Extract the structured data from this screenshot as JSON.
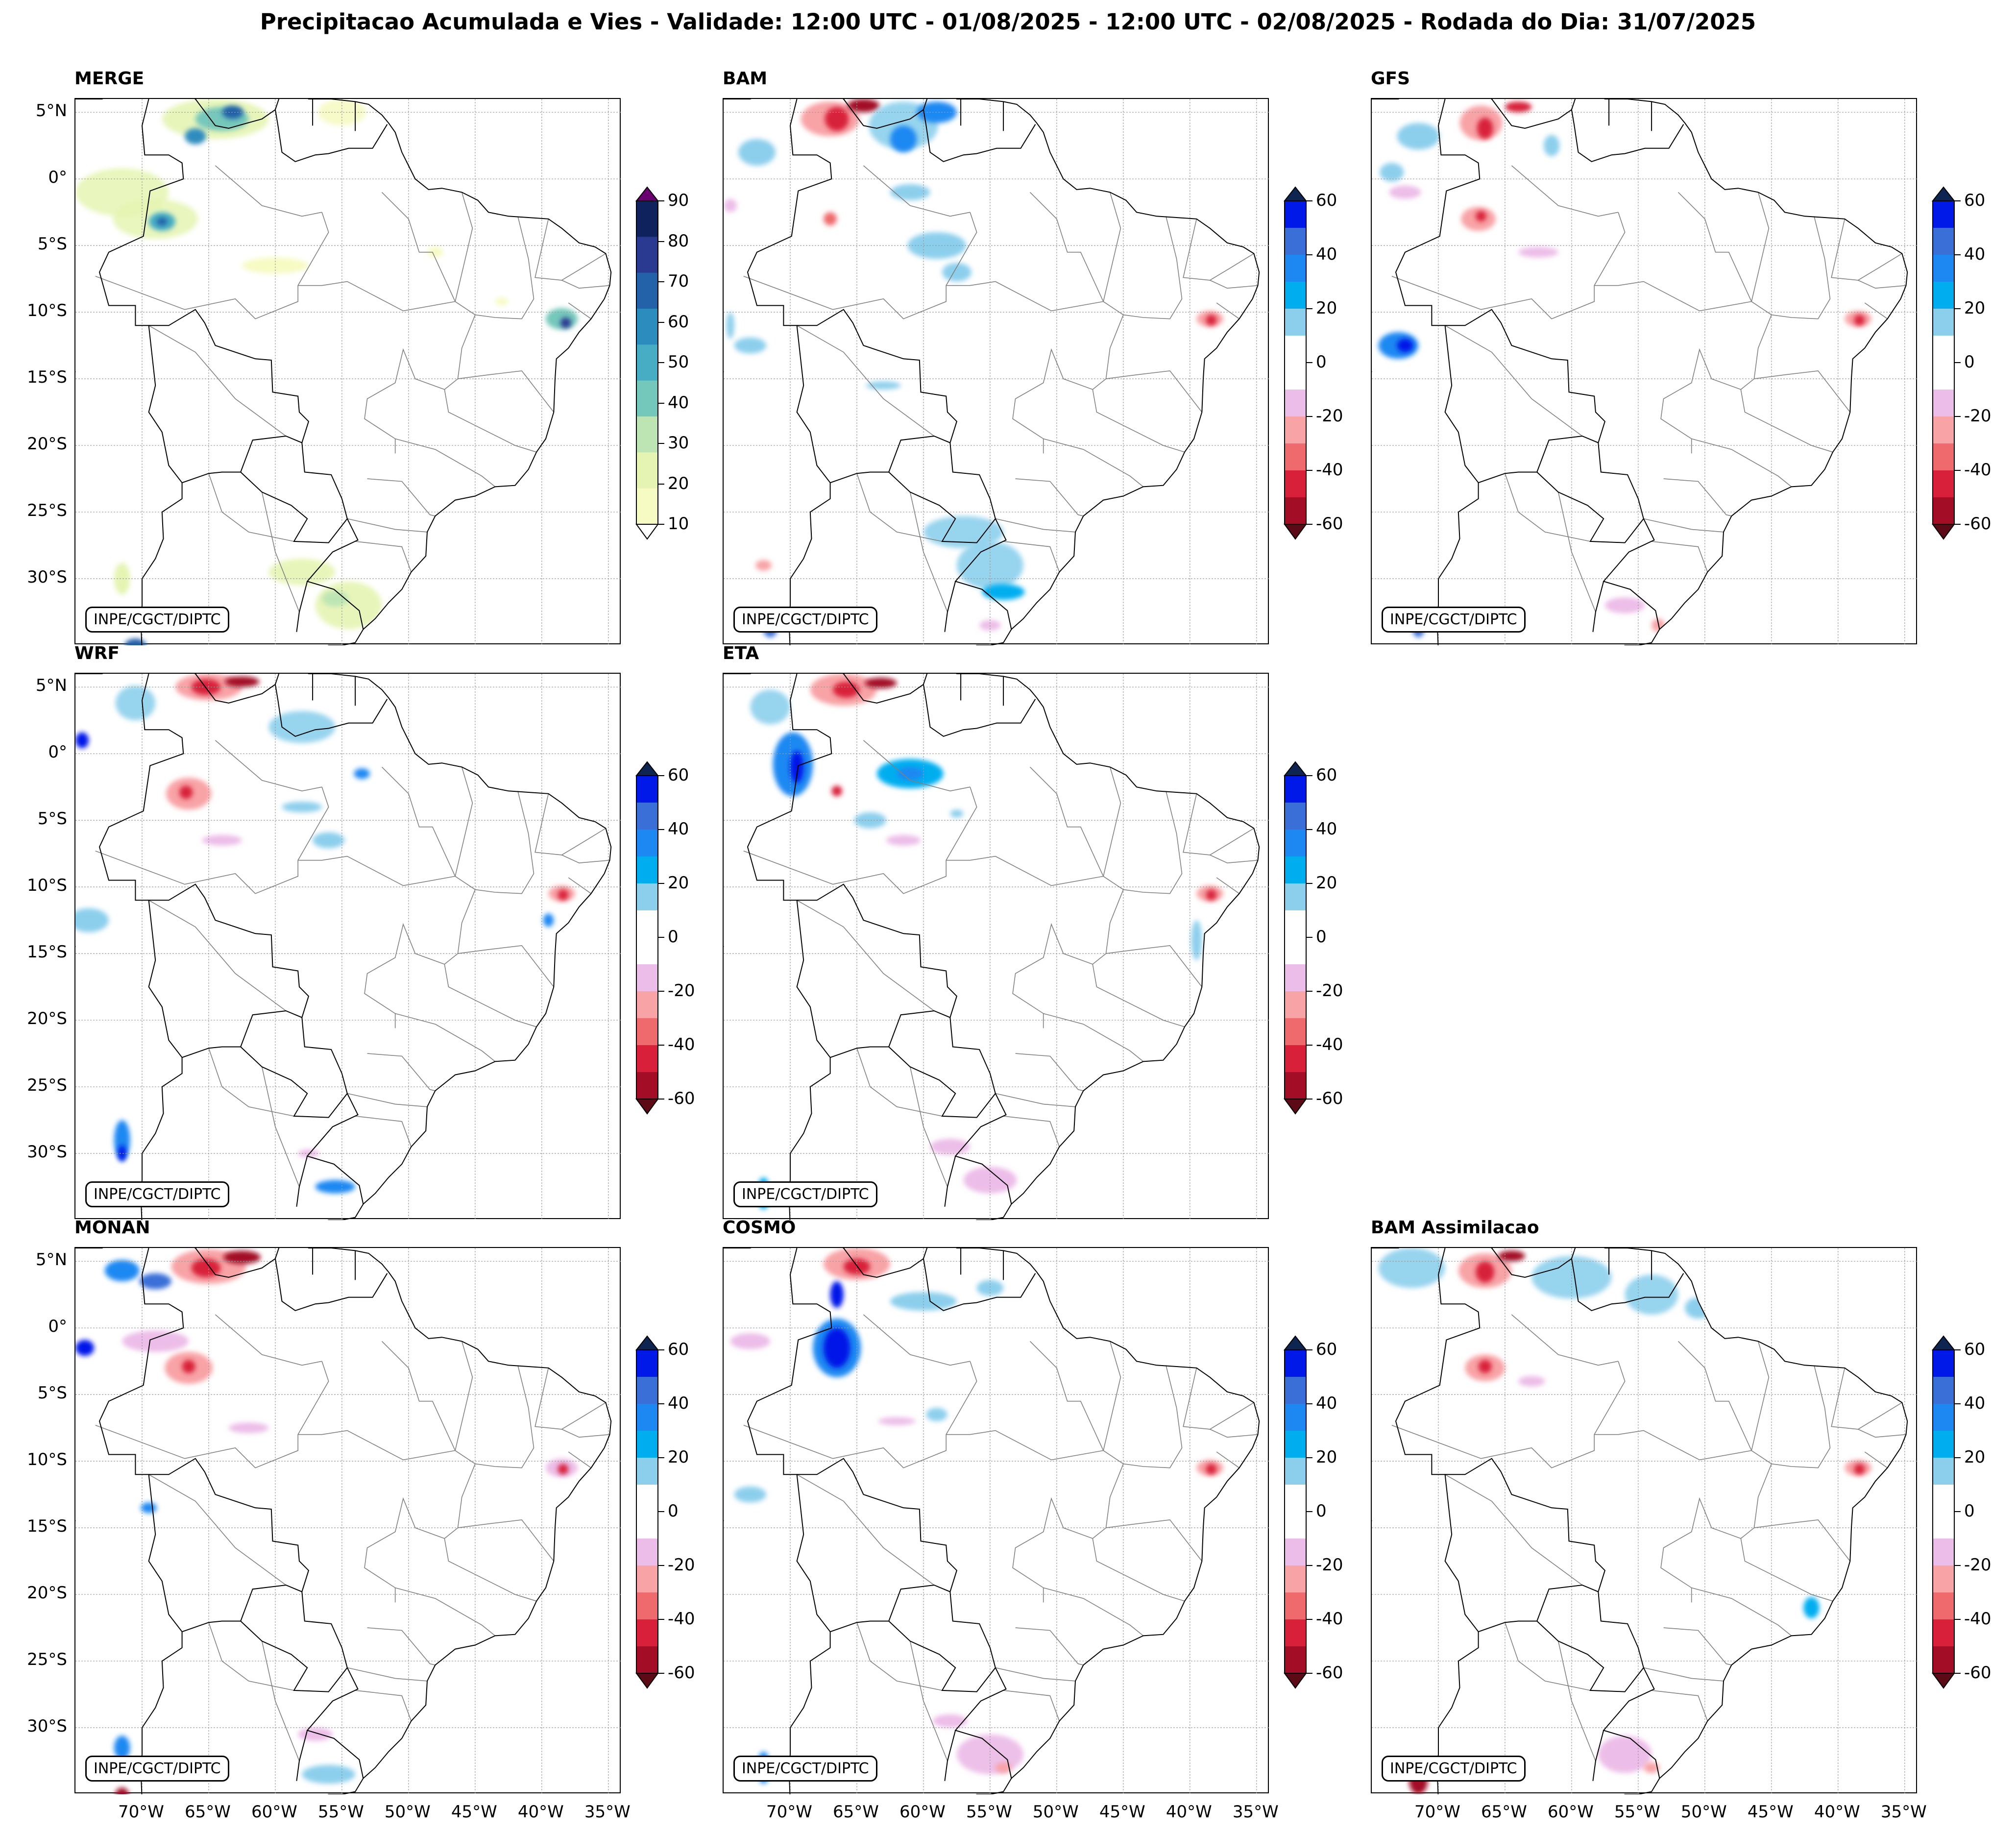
{
  "title": "Precipitacao Acumulada e Vies - Validade: 12:00 UTC - 01/08/2025 - 12:00 UTC - 02/08/2025 - Rodada do Dia: 31/07/2025",
  "credit": "INPE/CGCT/DIPTC",
  "lat_labels": [
    "5°N",
    "0°",
    "5°S",
    "10°S",
    "15°S",
    "20°S",
    "25°S",
    "30°S"
  ],
  "lon_labels": [
    "70°W",
    "65°W",
    "60°W",
    "55°W",
    "50°W",
    "45°W",
    "40°W",
    "35°W"
  ],
  "precip_colorbar": {
    "labels": [
      "90",
      "80",
      "70",
      "60",
      "50",
      "40",
      "30",
      "20",
      "10"
    ],
    "colors": [
      "#10225e",
      "#2a3a91",
      "#2361a8",
      "#2d8cbe",
      "#46adc4",
      "#74c8bb",
      "#bde5b4",
      "#e5f4b2",
      "#f6fbc3"
    ],
    "top_arrow_color": "#6a0070"
  },
  "bias_colorbar": {
    "labels": [
      "60",
      "40",
      "20",
      "0",
      "-20",
      "-40",
      "-60"
    ],
    "colors": [
      "#0018e8",
      "#3b6fd8",
      "#1e88f2",
      "#00aef0",
      "#8ccfec",
      "#ffffff",
      "#ffffff",
      "#ecbde8",
      "#f8a3a6",
      "#ee6a6c",
      "#d8203b",
      "#a30d25"
    ],
    "top_arrow_color": "#0d2550",
    "bottom_arrow_color": "#5c0a16"
  },
  "panels": [
    {
      "id": "merge",
      "name": "MERGE",
      "type": "precip"
    },
    {
      "id": "bam",
      "name": "BAM",
      "type": "bias"
    },
    {
      "id": "gfs",
      "name": "GFS",
      "type": "bias"
    },
    {
      "id": "wrf",
      "name": "WRF",
      "type": "bias"
    },
    {
      "id": "eta",
      "name": "ETA",
      "type": "bias"
    },
    {
      "id": "monan",
      "name": "MONAN",
      "type": "bias"
    },
    {
      "id": "cosmo",
      "name": "COSMO",
      "type": "bias"
    },
    {
      "id": "bamassim",
      "name": "BAM Assimilacao",
      "type": "bias"
    }
  ]
}
